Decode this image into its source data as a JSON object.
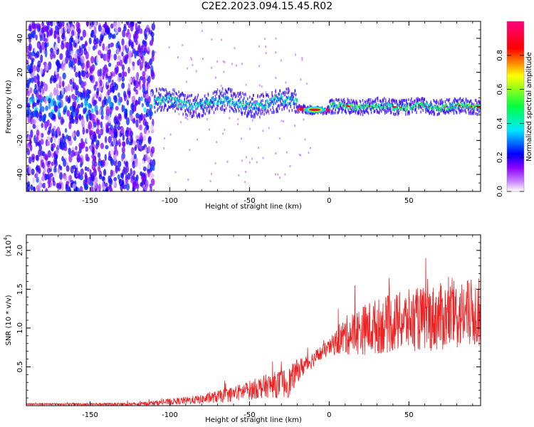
{
  "title": "C2E2.2023.094.15.45.R02",
  "chart_data": [
    {
      "type": "heatmap",
      "xlabel": "Height of straight line (km)",
      "ylabel": "Frequency (Hz)",
      "xlim": [
        -190,
        95
      ],
      "ylim": [
        -50,
        50
      ],
      "xticks": [
        -150,
        -100,
        -50,
        0,
        50
      ],
      "yticks": [
        -40,
        -20,
        0,
        20,
        40
      ],
      "colorbar": {
        "label": "Normalized spectral amplitude",
        "range": [
          0,
          1
        ],
        "ticks": [
          "0.0",
          "0.2",
          "0.4",
          "0.6",
          "0.8"
        ],
        "colormap": [
          "#ffffff",
          "#8a00ff",
          "#0000ff",
          "#00e8ff",
          "#00ff40",
          "#ffff00",
          "#ff0000",
          "#ff0080"
        ]
      },
      "regions": [
        {
          "x": [
            -190,
            -110
          ],
          "description_level": 0.2,
          "spread_hz": 50
        },
        {
          "x": [
            -110,
            -20
          ],
          "center_hz": 2,
          "amplitude": 0.4,
          "spread_hz": 6
        },
        {
          "x": [
            -20,
            0
          ],
          "center_hz": -2,
          "amplitude": 0.9,
          "spread_hz": 2
        },
        {
          "x": [
            0,
            95
          ],
          "center_hz": 0,
          "amplitude": 0.5,
          "spread_hz": 4
        }
      ]
    },
    {
      "type": "line",
      "xlabel": "Height of straight line (km)",
      "ylabel": "SNR (10 * v/v)",
      "yscale_label": "(x10",
      "yscale_exp": "4",
      "yscale_close": ")",
      "xlim": [
        -190,
        95
      ],
      "ylim": [
        0,
        2.2
      ],
      "xticks": [
        -150,
        -100,
        -50,
        0,
        50
      ],
      "yticks": [
        0.5,
        1.0,
        1.5,
        2.0
      ],
      "ytick_labels": [
        "0.5",
        "1.0",
        "1.5",
        "2.0"
      ],
      "color": "#ee2222",
      "envelope": [
        {
          "x": -190,
          "mean": 0.02,
          "noise": 0.01
        },
        {
          "x": -120,
          "mean": 0.02,
          "noise": 0.02
        },
        {
          "x": -100,
          "mean": 0.05,
          "noise": 0.04
        },
        {
          "x": -80,
          "mean": 0.08,
          "noise": 0.06
        },
        {
          "x": -60,
          "mean": 0.15,
          "noise": 0.1
        },
        {
          "x": -40,
          "mean": 0.25,
          "noise": 0.15
        },
        {
          "x": -25,
          "mean": 0.3,
          "noise": 0.2
        },
        {
          "x": -20,
          "mean": 0.45,
          "noise": 0.15
        },
        {
          "x": -10,
          "mean": 0.6,
          "noise": 0.1
        },
        {
          "x": 0,
          "mean": 0.75,
          "noise": 0.1
        },
        {
          "x": 10,
          "mean": 0.9,
          "noise": 0.25
        },
        {
          "x": 25,
          "mean": 1.0,
          "noise": 0.35
        },
        {
          "x": 50,
          "mean": 1.1,
          "noise": 0.4
        },
        {
          "x": 75,
          "mean": 1.15,
          "noise": 0.45
        },
        {
          "x": 95,
          "mean": 1.2,
          "noise": 0.45
        }
      ]
    }
  ]
}
